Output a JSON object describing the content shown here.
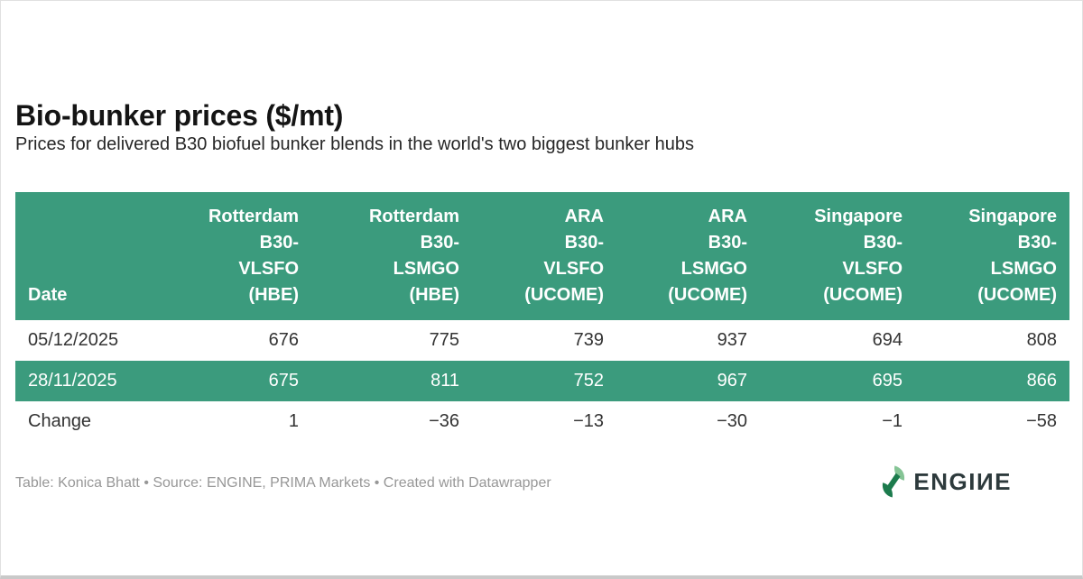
{
  "page": {
    "title": "Bio-bunker prices ($/mt)",
    "subtitle": "Prices for delivered B30 biofuel bunker blends in the world's two biggest bunker hubs",
    "footer_credit": "Table: Konica Bhatt • Source: ENGINE, PRIMA Markets • Created with Datawrapper",
    "logo_text": "ENGIИE",
    "logo_icon": "engine-leaf-logo"
  },
  "colors": {
    "accent_green": "#3b9b7d",
    "header_text": "#ffffff",
    "body_text": "#333333",
    "footer_text": "#979797",
    "logo_text": "#2d3a3c",
    "logo_leaf_light": "#85c495",
    "logo_leaf_dark": "#1c7b4d"
  },
  "table": {
    "columns": [
      {
        "id": "date",
        "label": "Date",
        "lines": [
          "Date"
        ]
      },
      {
        "id": "rotterdam-b30-vlsfo-hbe",
        "label": "Rotterdam B30-VLSFO (HBE)",
        "lines": [
          "Rotterdam",
          "B30-",
          "VLSFO",
          "(HBE)"
        ]
      },
      {
        "id": "rotterdam-b30-lsmgo-hbe",
        "label": "Rotterdam B30-LSMGO (HBE)",
        "lines": [
          "Rotterdam",
          "B30-",
          "LSMGO",
          "(HBE)"
        ]
      },
      {
        "id": "ara-b30-vlsfo-ucome",
        "label": "ARA B30-VLSFO (UCOME)",
        "lines": [
          "ARA",
          "B30-",
          "VLSFO",
          "(UCOME)"
        ]
      },
      {
        "id": "ara-b30-lsmgo-ucome",
        "label": "ARA B30-LSMGO (UCOME)",
        "lines": [
          "ARA",
          "B30-",
          "LSMGO",
          "(UCOME)"
        ]
      },
      {
        "id": "singapore-b30-vlsfo-ucome",
        "label": "Singapore B30-VLSFO (UCOME)",
        "lines": [
          "Singapore",
          "B30-",
          "VLSFO",
          "(UCOME)"
        ]
      },
      {
        "id": "singapore-b30-lsmgo-ucome",
        "label": "Singapore B30-LSMGO (UCOME)",
        "lines": [
          "Singapore",
          "B30-",
          "LSMGO",
          "(UCOME)"
        ]
      }
    ],
    "rows": [
      {
        "highlight": false,
        "cells": [
          "05/12/2025",
          "676",
          "775",
          "739",
          "937",
          "694",
          "808"
        ]
      },
      {
        "highlight": true,
        "cells": [
          "28/11/2025",
          "675",
          "811",
          "752",
          "967",
          "695",
          "866"
        ]
      },
      {
        "highlight": false,
        "cells": [
          "Change",
          "1",
          "−36",
          "−13",
          "−30",
          "−1",
          "−58"
        ]
      }
    ]
  },
  "chart_data": {
    "type": "table",
    "title": "Bio-bunker prices ($/mt)",
    "subtitle": "Prices for delivered B30 biofuel bunker blends in the world's two biggest bunker hubs",
    "columns": [
      "Date",
      "Rotterdam B30-VLSFO (HBE)",
      "Rotterdam B30-LSMGO (HBE)",
      "ARA B30-VLSFO (UCOME)",
      "ARA B30-LSMGO (UCOME)",
      "Singapore B30-VLSFO (UCOME)",
      "Singapore B30-LSMGO (UCOME)"
    ],
    "rows": [
      [
        "05/12/2025",
        676,
        775,
        739,
        937,
        694,
        808
      ],
      [
        "28/11/2025",
        675,
        811,
        752,
        967,
        695,
        866
      ],
      [
        "Change",
        1,
        -36,
        -13,
        -30,
        -1,
        -58
      ]
    ],
    "highlighted_row": "28/11/2025",
    "units": "$/mt",
    "credit": "Table: Konica Bhatt • Source: ENGINE, PRIMA Markets • Created with Datawrapper"
  }
}
